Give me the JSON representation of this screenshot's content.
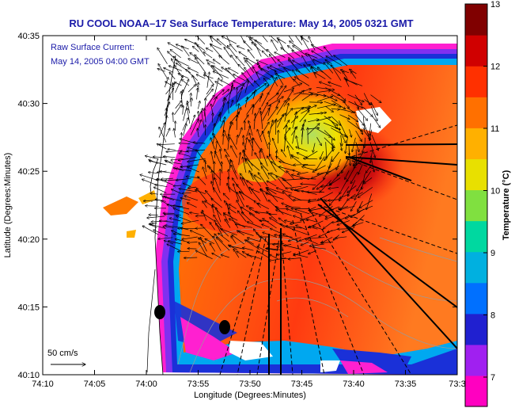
{
  "title": "RU COOL  NOAA–17  Sea Surface Temperature:  May 14, 2005 0321 GMT",
  "annotation": {
    "line1": "Raw Surface Current:",
    "line2": "May 14, 2005 04:00 GMT"
  },
  "scale_label": "50 cm/s",
  "x_axis": {
    "label": "Longitude (Degrees:Minutes)",
    "ticks": [
      "74:10",
      "74:05",
      "74:00",
      "73:55",
      "73:50",
      "73:45",
      "73:40",
      "73:35",
      "73:3"
    ]
  },
  "y_axis": {
    "label": "Latitude (Degrees:Minutes)",
    "ticks": [
      "40:35",
      "40:30",
      "40:25",
      "40:20",
      "40:15",
      "40:10"
    ]
  },
  "colorbar": {
    "label": "Temperature (°C)",
    "ticks": [
      "13",
      "12",
      "11",
      "10",
      "9",
      "8",
      "7"
    ],
    "colors": [
      "#ff00c0",
      "#a020f0",
      "#2020d0",
      "#0070ff",
      "#00b0e0",
      "#00d8a0",
      "#80e040",
      "#e8e000",
      "#ffb000",
      "#ff7000",
      "#ff3000",
      "#d00000",
      "#800000"
    ]
  }
}
